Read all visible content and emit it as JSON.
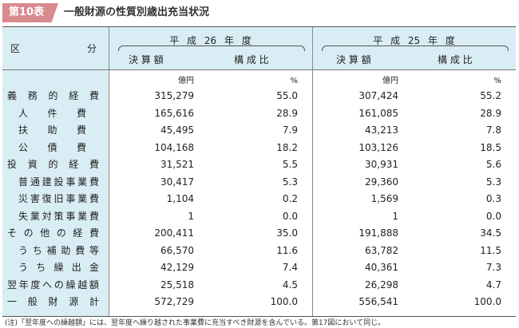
{
  "badge": "第10表",
  "title": "一般財源の性質別歳出充当状況",
  "header": {
    "category": "区　　　　　　　分",
    "years": [
      {
        "label": "平 成 26 年 度",
        "amount": "決 算 額",
        "ratio": "構 成 比"
      },
      {
        "label": "平 成 25 年 度",
        "amount": "決 算 額",
        "ratio": "構 成 比"
      }
    ]
  },
  "units": {
    "amount": "億円",
    "ratio": "%"
  },
  "rows": [
    {
      "label": "義務的経費",
      "indent": 0,
      "v26": "315,279",
      "r26": "55.0",
      "v25": "307,424",
      "r25": "55.2"
    },
    {
      "label": "人件費",
      "indent": 2,
      "v26": "165,616",
      "r26": "28.9",
      "v25": "161,085",
      "r25": "28.9"
    },
    {
      "label": "扶助費",
      "indent": 2,
      "v26": "45,495",
      "r26": "7.9",
      "v25": "43,213",
      "r25": "7.8"
    },
    {
      "label": "公債費",
      "indent": 2,
      "v26": "104,168",
      "r26": "18.2",
      "v25": "103,126",
      "r25": "18.5"
    },
    {
      "label": "投資的経費",
      "indent": 0,
      "v26": "31,521",
      "r26": "5.5",
      "v25": "30,931",
      "r25": "5.6"
    },
    {
      "label": "普通建設事業費",
      "indent": 1,
      "v26": "30,417",
      "r26": "5.3",
      "v25": "29,360",
      "r25": "5.3"
    },
    {
      "label": "災害復旧事業費",
      "indent": 1,
      "v26": "1,104",
      "r26": "0.2",
      "v25": "1,569",
      "r25": "0.3"
    },
    {
      "label": "失業対策事業費",
      "indent": 1,
      "v26": "1",
      "r26": "0.0",
      "v25": "1",
      "r25": "0.0"
    },
    {
      "label": "その他の経費",
      "indent": 0,
      "v26": "200,411",
      "r26": "35.0",
      "v25": "191,888",
      "r25": "34.5"
    },
    {
      "label": "うち補助費等",
      "indent": 1,
      "v26": "66,570",
      "r26": "11.6",
      "v25": "63,782",
      "r25": "11.5"
    },
    {
      "label": "うち繰出金",
      "indent": 1,
      "v26": "42,129",
      "r26": "7.4",
      "v25": "40,361",
      "r25": "7.3"
    },
    {
      "label": "翌年度への繰越額",
      "indent": 0,
      "v26": "25,518",
      "r26": "4.5",
      "v25": "26,298",
      "r25": "4.7"
    },
    {
      "label": "一般財源計",
      "indent": 0,
      "v26": "572,729",
      "r26": "100.0",
      "v25": "556,541",
      "r25": "100.0"
    }
  ],
  "note": "(注)「翌年度への繰越額」には、翌年度へ繰り越された事業費に充当すべき財源を含んでいる。第17図において同じ。"
}
